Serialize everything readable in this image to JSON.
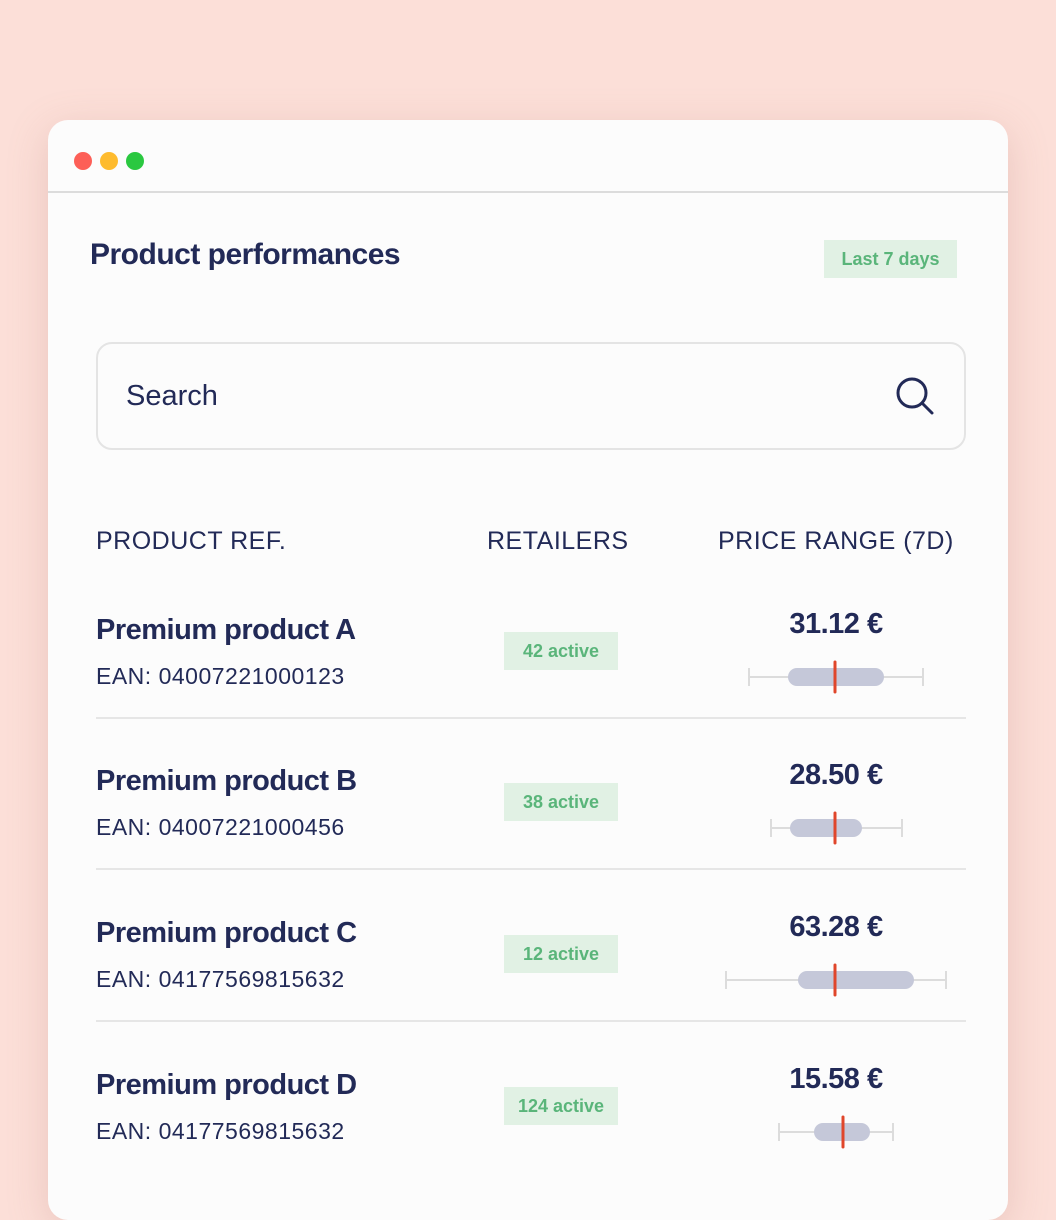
{
  "window": {
    "controls": [
      {
        "name": "close",
        "color": "#fd5f57"
      },
      {
        "name": "minimize",
        "color": "#febb2e"
      },
      {
        "name": "maximize",
        "color": "#2ac840"
      }
    ]
  },
  "header": {
    "title": "Product performances",
    "period": "Last 7 days"
  },
  "search": {
    "placeholder": "Search",
    "icon": "search-icon"
  },
  "table": {
    "columns": [
      "PRODUCT REF.",
      "RETAILERS",
      "PRICE RANGE (7D)"
    ],
    "rows": [
      {
        "name": "Premium product  A",
        "ean": "EAN: 04007221000123",
        "retailers": "42 active",
        "price": "31.12 €"
      },
      {
        "name": "Premium product B",
        "ean": "EAN: 04007221000456",
        "retailers": "38 active",
        "price": "28.50 €"
      },
      {
        "name": "Premium product C",
        "ean": "EAN: 04177569815632",
        "retailers": "12 active",
        "price": "63.28 €"
      },
      {
        "name": "Premium product D",
        "ean": "EAN: 04177569815632",
        "retailers": "124 active",
        "price": "15.58 €"
      }
    ]
  },
  "colors": {
    "text": "#222a57",
    "badge_bg": "#e1f1e4",
    "badge_text": "#5ab57a",
    "range_box": "#c5c8d9",
    "current_marker": "#e0462b"
  }
}
